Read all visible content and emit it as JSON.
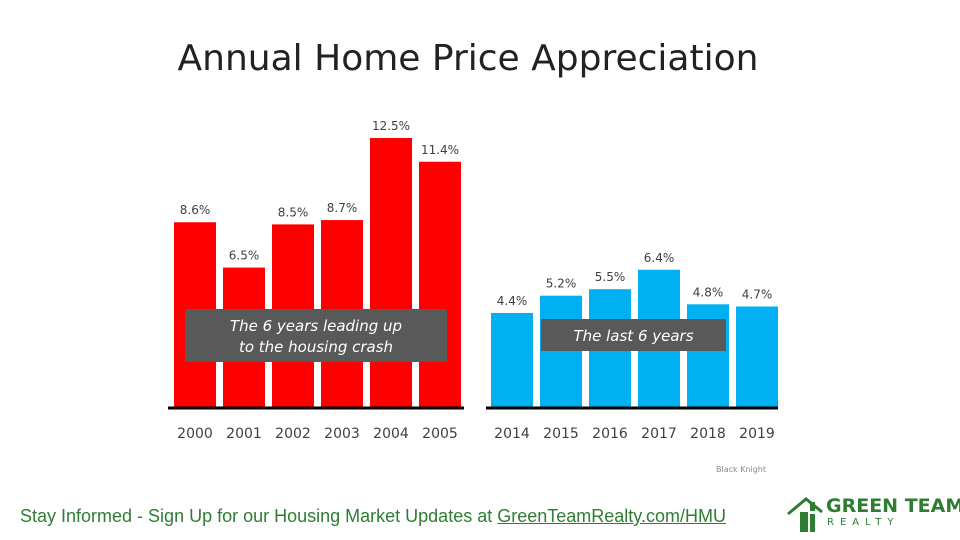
{
  "title": "Annual Home Price Appreciation",
  "source": "Black Knight",
  "footer": {
    "text": "Stay Informed - Sign Up for our Housing Market Updates at ",
    "link": "GreenTeamRealty.com/HMU"
  },
  "logo": {
    "line1": "GREEN TEAM",
    "line2": "REALTY"
  },
  "colors": {
    "red": "#ff0000",
    "blue": "#00b0f0",
    "label_box": "#595959",
    "footer_green": "#2e7d32"
  },
  "chart_data": [
    {
      "type": "bar",
      "categories": [
        "2000",
        "2001",
        "2002",
        "2003",
        "2004",
        "2005"
      ],
      "values": [
        8.6,
        6.5,
        8.5,
        8.7,
        12.5,
        11.4
      ],
      "labels": [
        "8.6%",
        "6.5%",
        "8.5%",
        "8.7%",
        "12.5%",
        "11.4%"
      ],
      "annotation": [
        "The 6 years leading up",
        "to the housing crash"
      ],
      "color": "#ff0000"
    },
    {
      "type": "bar",
      "categories": [
        "2014",
        "2015",
        "2016",
        "2017",
        "2018",
        "2019"
      ],
      "values": [
        4.4,
        5.2,
        5.5,
        6.4,
        4.8,
        4.7
      ],
      "labels": [
        "4.4%",
        "5.2%",
        "5.5%",
        "6.4%",
        "4.8%",
        "4.7%"
      ],
      "annotation": [
        "The last 6 years"
      ],
      "color": "#00b0f0"
    }
  ]
}
